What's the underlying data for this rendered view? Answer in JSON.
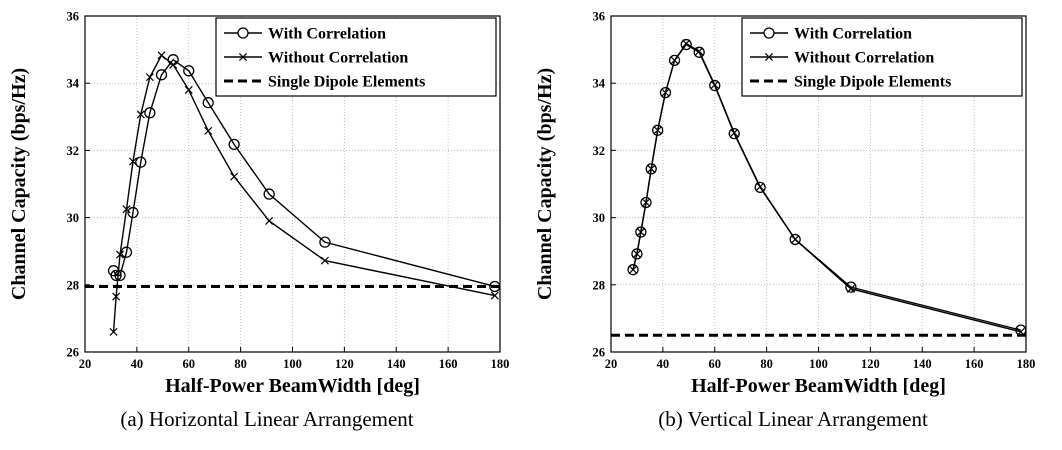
{
  "chart_data": [
    {
      "type": "line",
      "caption": "(a) Horizontal Linear Arrangement",
      "xlabel": "Half-Power BeamWidth [deg]",
      "ylabel": "Channel Capacity (bps/Hz)",
      "xlim": [
        20,
        180
      ],
      "ylim": [
        26,
        36
      ],
      "xticks": [
        20,
        40,
        60,
        80,
        100,
        120,
        140,
        160,
        180
      ],
      "yticks": [
        26,
        28,
        30,
        32,
        34,
        36
      ],
      "grid": true,
      "legend_position": "top-right",
      "series": [
        {
          "name": "With Correlation",
          "marker": "circle",
          "style": "solid",
          "x": [
            31,
            32,
            33.5,
            36,
            38.5,
            41.5,
            45,
            49.5,
            54,
            60,
            67.5,
            77.5,
            91,
            112.5,
            178
          ],
          "y": [
            28.42,
            28.28,
            28.28,
            28.97,
            30.15,
            31.65,
            33.12,
            34.25,
            34.7,
            34.37,
            33.42,
            32.18,
            30.7,
            29.27,
            27.95
          ]
        },
        {
          "name": "Without Correlation",
          "marker": "x",
          "style": "solid",
          "x": [
            31,
            32,
            33.5,
            36,
            38.5,
            41.5,
            45,
            49.5,
            54,
            60,
            67.5,
            77.5,
            91,
            112.5,
            178
          ],
          "y": [
            26.6,
            27.65,
            28.9,
            30.25,
            31.67,
            33.07,
            34.18,
            34.83,
            34.55,
            33.8,
            32.58,
            31.22,
            29.9,
            28.72,
            27.68
          ]
        },
        {
          "name": "Single Dipole Elements",
          "marker": "none",
          "style": "dashed",
          "x": [
            20,
            180
          ],
          "y": [
            27.95,
            27.95
          ]
        }
      ]
    },
    {
      "type": "line",
      "caption": "(b) Vertical Linear Arrangement",
      "xlabel": "Half-Power BeamWidth [deg]",
      "ylabel": "Channel Capacity (bps/Hz)",
      "xlim": [
        20,
        180
      ],
      "ylim": [
        26,
        36
      ],
      "xticks": [
        20,
        40,
        60,
        80,
        100,
        120,
        140,
        160,
        180
      ],
      "yticks": [
        26,
        28,
        30,
        32,
        34,
        36
      ],
      "grid": true,
      "legend_position": "top-right",
      "series": [
        {
          "name": "With Correlation",
          "marker": "circle",
          "style": "solid",
          "x": [
            28.5,
            30,
            31.5,
            33.5,
            35.5,
            38,
            41,
            44.5,
            49,
            54,
            60,
            67.5,
            77.5,
            91,
            112.5,
            178
          ],
          "y": [
            28.45,
            28.92,
            29.57,
            30.45,
            31.45,
            32.6,
            33.72,
            34.68,
            35.15,
            34.92,
            33.93,
            32.5,
            30.9,
            29.35,
            27.93,
            26.65
          ]
        },
        {
          "name": "Without Correlation",
          "marker": "x",
          "style": "solid",
          "x": [
            28.5,
            30,
            31.5,
            33.5,
            35.5,
            38,
            41,
            44.5,
            49,
            54,
            60,
            67.5,
            77.5,
            91,
            112.5,
            178
          ],
          "y": [
            28.45,
            28.92,
            29.57,
            30.45,
            31.45,
            32.6,
            33.72,
            34.68,
            35.18,
            34.95,
            33.95,
            32.52,
            30.92,
            29.35,
            27.88,
            26.6
          ]
        },
        {
          "name": "Single Dipole Elements",
          "marker": "none",
          "style": "dashed",
          "x": [
            20,
            180
          ],
          "y": [
            26.5,
            26.5
          ]
        }
      ]
    }
  ]
}
